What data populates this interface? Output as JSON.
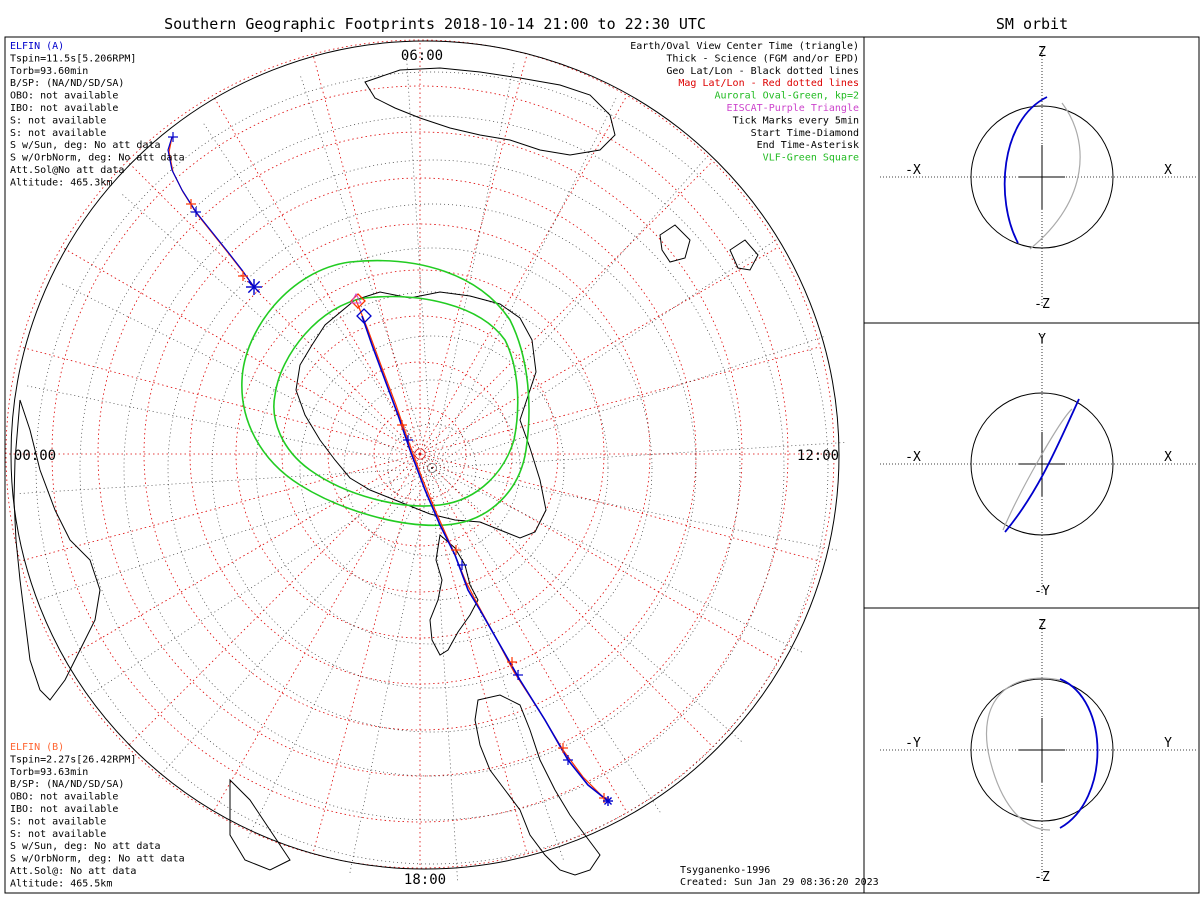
{
  "title": "Southern Geographic Footprints 2018-10-14 21:00 to 22:30 UTC",
  "sm_title": "SM orbit",
  "hour_labels": {
    "top": "06:00",
    "left": "00:00",
    "right": "12:00",
    "bottom": "18:00"
  },
  "elfin_a": {
    "name": "ELFIN (A)",
    "color": "#0000cc",
    "lines": [
      "Tspin=11.5s[5.206RPM]",
      "Torb=93.60min",
      "B/SP: (NA/ND/SD/SA)",
      "OBO: not available",
      "IBO: not available",
      "S: not available",
      "S: not available",
      "S w/Sun, deg: No att data",
      "S w/OrbNorm, deg: No att data",
      "Att.Sol@No att data",
      "Altitude: 465.3km"
    ]
  },
  "elfin_b": {
    "name": "ELFIN (B)",
    "color": "#ff6633",
    "lines": [
      "Tspin=2.27s[26.42RPM]",
      "Torb=93.63min",
      "B/SP: (NA/ND/SD/SA)",
      "OBO: not available",
      "IBO: not available",
      "S: not available",
      "S: not available",
      "S w/Sun, deg: No att data",
      "S w/OrbNorm, deg: No att data",
      "Att.Sol@: No att data",
      "Altitude: 465.5km"
    ]
  },
  "legend": [
    {
      "text": "Earth/Oval View Center Time (triangle)",
      "color": "#000000"
    },
    {
      "text": "Thick - Science (FGM and/or EPD)",
      "color": "#000000"
    },
    {
      "text": "Geo Lat/Lon - Black dotted lines",
      "color": "#000000"
    },
    {
      "text": "Mag Lat/Lon - Red dotted lines",
      "color": "#dd0000"
    },
    {
      "text": "Auroral Oval-Green, kp=2",
      "color": "#22bb22"
    },
    {
      "text": "EISCAT-Purple Triangle",
      "color": "#cc44cc"
    },
    {
      "text": "Tick Marks every 5min",
      "color": "#000000"
    },
    {
      "text": "Start Time-Diamond",
      "color": "#000000"
    },
    {
      "text": "End Time-Asterisk",
      "color": "#000000"
    },
    {
      "text": "VLF-Green Square",
      "color": "#22bb22"
    }
  ],
  "credit": [
    "Tsyganenko-1996",
    "Created: Sun Jan 29 08:36:20 2023"
  ],
  "sm_panels": [
    {
      "top": "Z",
      "bottom": "-Z",
      "left": "-X",
      "right": "X"
    },
    {
      "top": "Y",
      "bottom": "-Y",
      "left": "-X",
      "right": "X"
    },
    {
      "top": "Z",
      "bottom": "-Z",
      "left": "-Y",
      "right": "Y"
    }
  ],
  "colors": {
    "elfin_a": "#0000cc",
    "elfin_b": "#ff3300",
    "auroral_oval": "#22cc22",
    "mag_grid": "#dd0000",
    "geo_grid": "#000000"
  }
}
